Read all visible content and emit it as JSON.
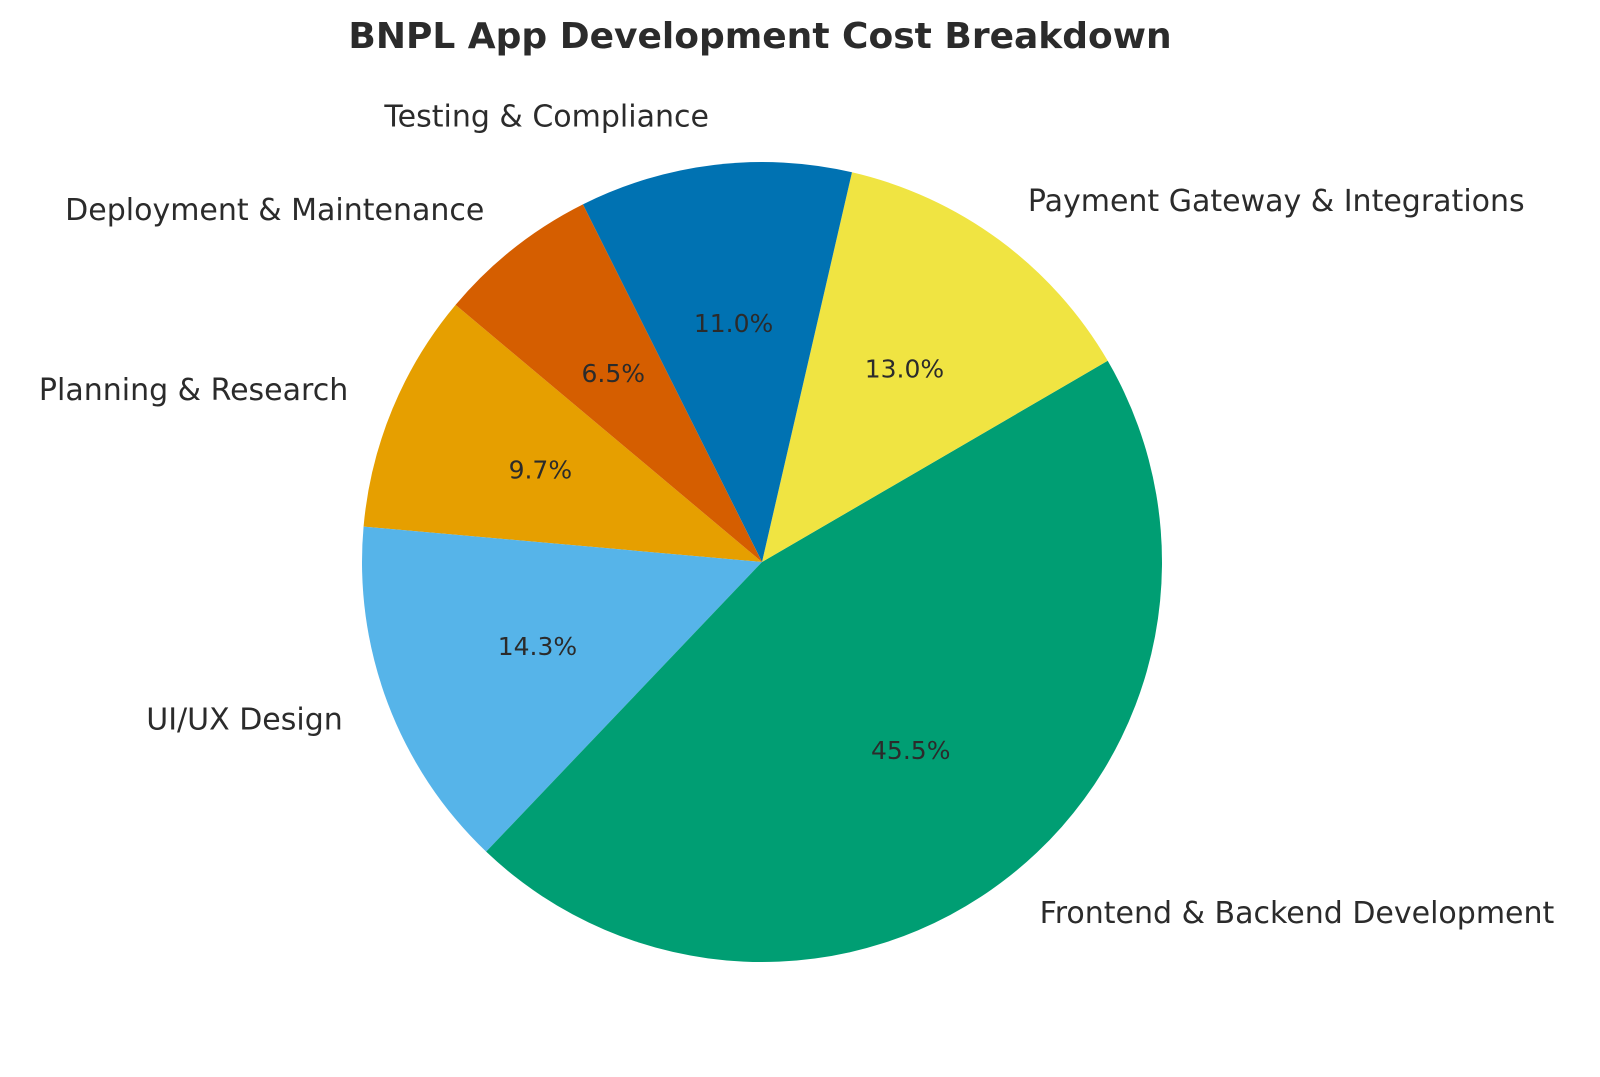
{
  "chart_data": {
    "type": "pie",
    "title": "BNPL App Development Cost Breakdown",
    "start_angle": 140,
    "direction": "counterclockwise",
    "slices": [
      {
        "label": "Planning & Research",
        "value": 9.7,
        "pct_label": "9.7%",
        "color": "#E69F00"
      },
      {
        "label": "UI/UX Design",
        "value": 14.3,
        "pct_label": "14.3%",
        "color": "#56B4E9"
      },
      {
        "label": "Frontend & Backend Development",
        "value": 45.5,
        "pct_label": "45.5%",
        "color": "#009E73"
      },
      {
        "label": "Payment Gateway & Integrations",
        "value": 13.0,
        "pct_label": "13.0%",
        "color": "#F0E442"
      },
      {
        "label": "Testing & Compliance",
        "value": 11.0,
        "pct_label": "11.0%",
        "color": "#0072B2"
      },
      {
        "label": "Deployment & Maintenance",
        "value": 6.5,
        "pct_label": "6.5%",
        "color": "#D55E00"
      }
    ]
  }
}
